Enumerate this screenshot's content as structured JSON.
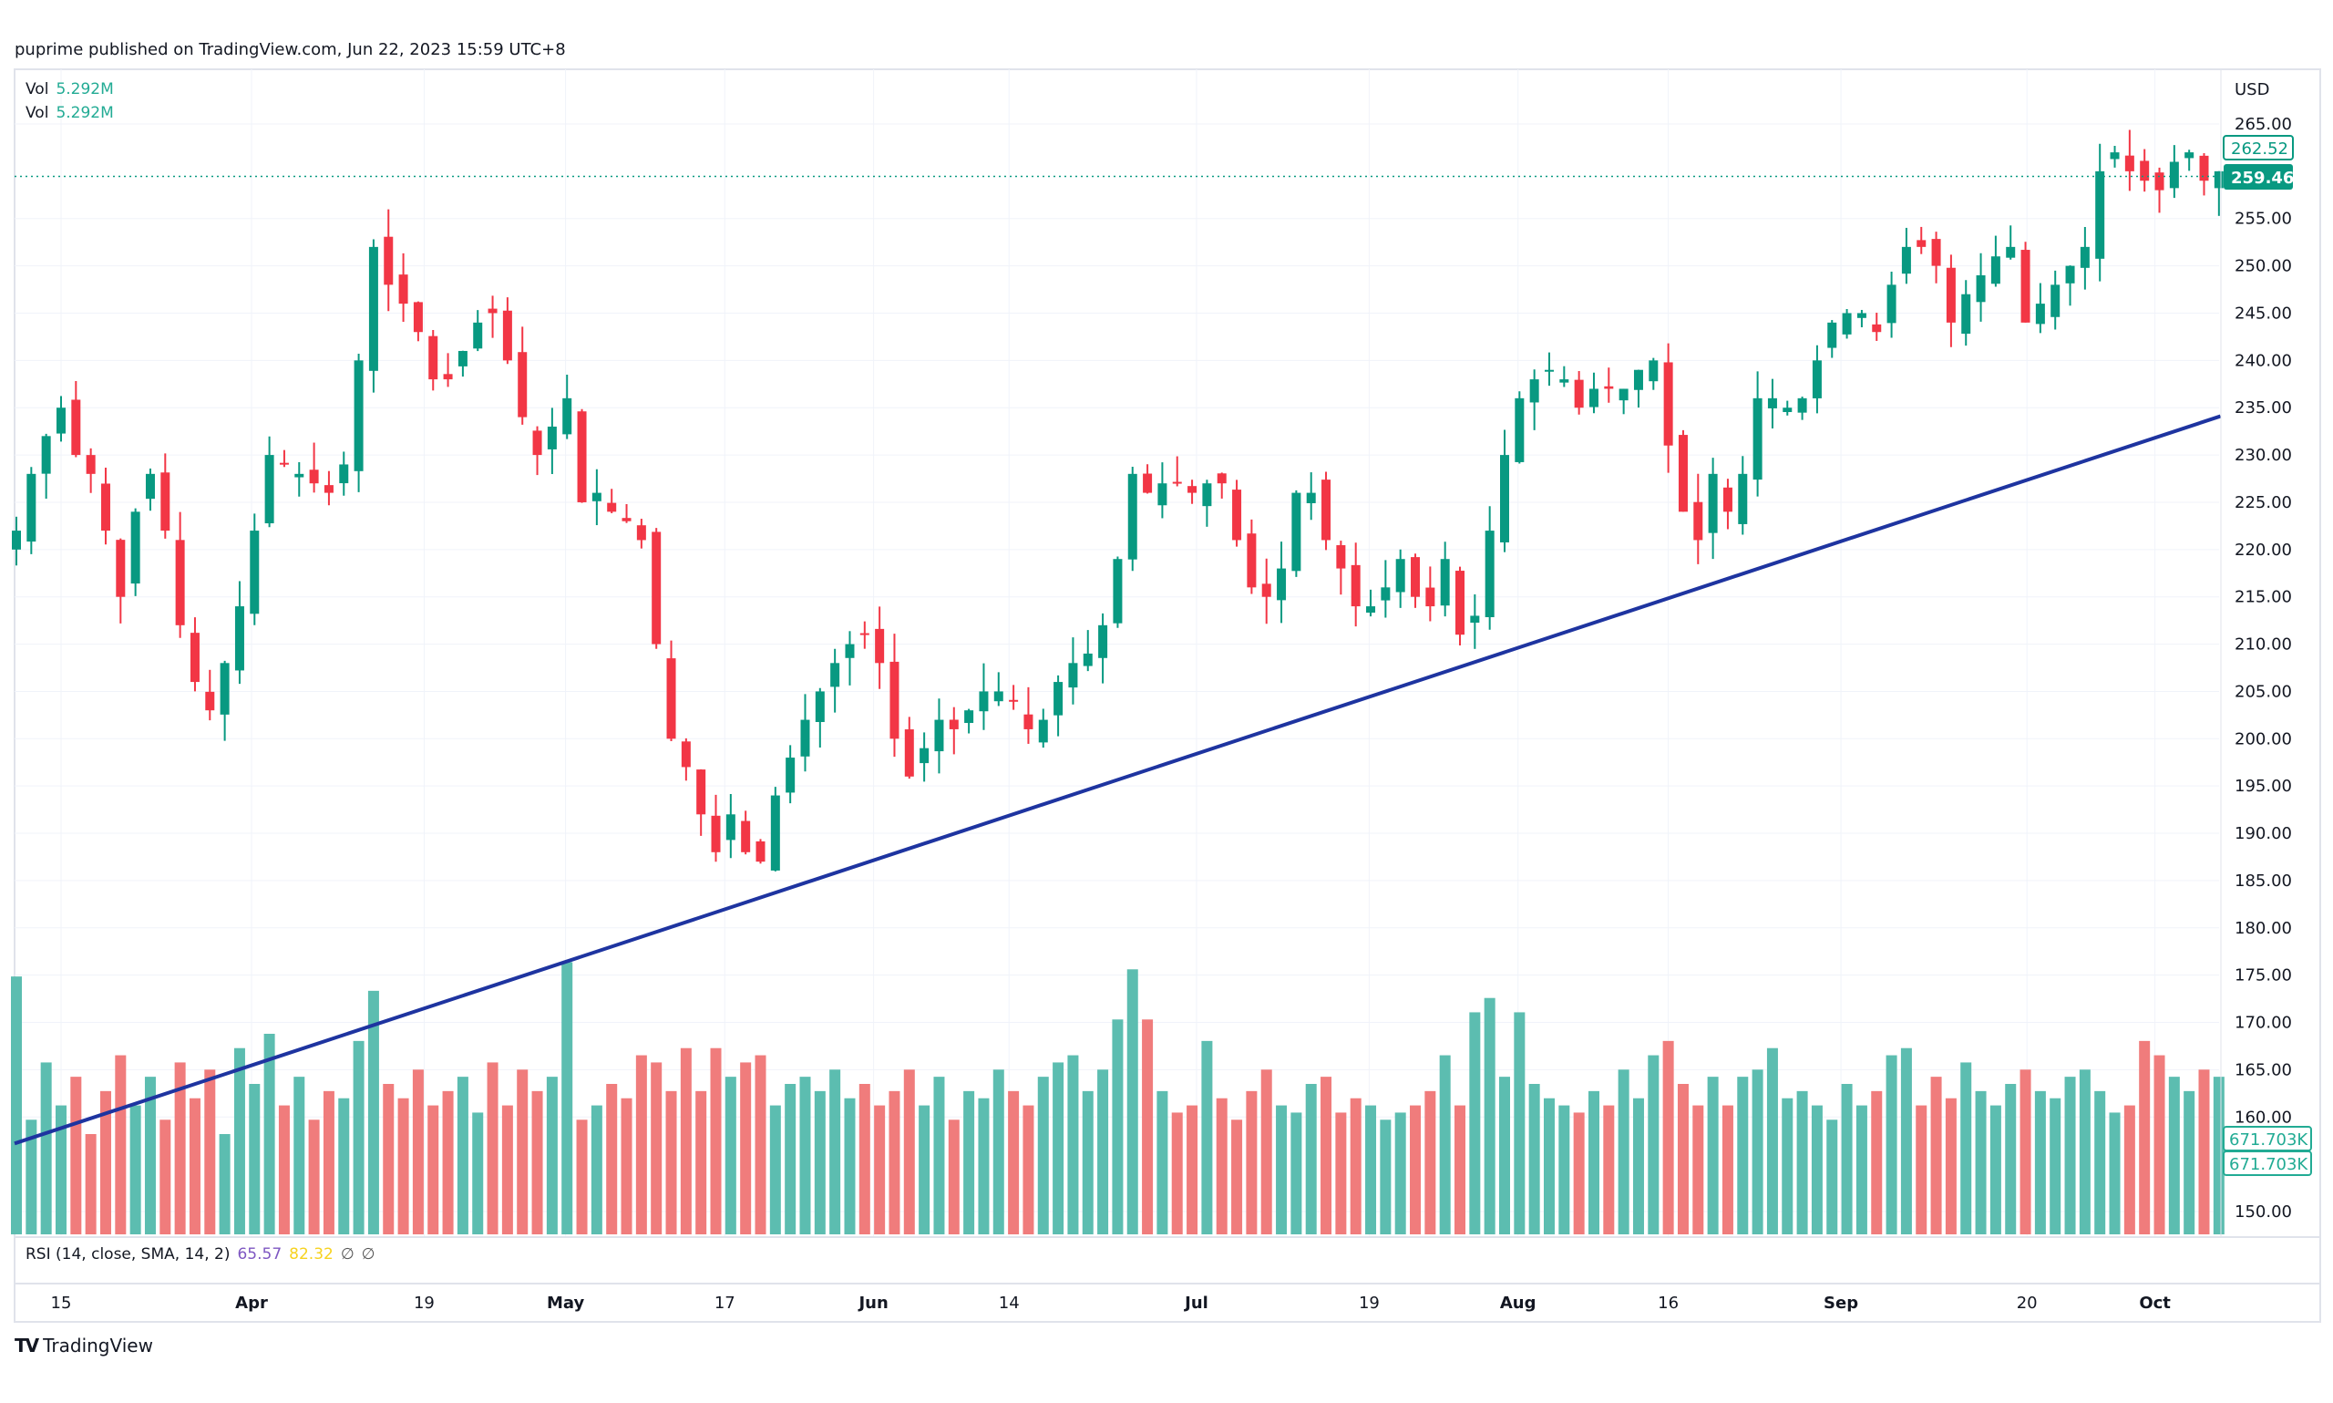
{
  "header": {
    "published": "puprime published on TradingView.com, Jun 22, 2023 15:59 UTC+8"
  },
  "legend": [
    {
      "label": "Vol",
      "value": "5.292M"
    },
    {
      "label": "Vol",
      "value": "5.292M"
    }
  ],
  "rsi": {
    "label": "RSI (14, close, SMA, 14, 2)",
    "value1": "65.57",
    "value2": "82.32",
    "value3": "∅",
    "value4": "∅"
  },
  "footer": {
    "brand": "TradingView",
    "logo": "17"
  },
  "colors": {
    "up": "#089981",
    "down": "#f23645",
    "vol_up": "#5cbdb0",
    "vol_down": "#f07c7c",
    "trendline": "#1e34a0",
    "price_label": "#089981"
  },
  "chart_data": {
    "type": "candlestick",
    "currency": "USD",
    "ylim": [
      150,
      265
    ],
    "y_ticks": [
      "265.00",
      "255.00",
      "250.00",
      "245.00",
      "240.00",
      "235.00",
      "230.00",
      "225.00",
      "220.00",
      "215.00",
      "210.00",
      "205.00",
      "200.00",
      "195.00",
      "190.00",
      "185.00",
      "180.00",
      "175.00",
      "170.00",
      "165.00",
      "160.00",
      "150.00"
    ],
    "x_ticks": [
      {
        "label": "15",
        "index": 3,
        "bold": false
      },
      {
        "label": "Apr",
        "index": 15.8,
        "bold": true
      },
      {
        "label": "19",
        "index": 27.4,
        "bold": false
      },
      {
        "label": "May",
        "index": 36.9,
        "bold": true
      },
      {
        "label": "17",
        "index": 47.6,
        "bold": false
      },
      {
        "label": "Jun",
        "index": 57.6,
        "bold": true
      },
      {
        "label": "14",
        "index": 66.7,
        "bold": false
      },
      {
        "label": "Jul",
        "index": 79.3,
        "bold": true
      },
      {
        "label": "19",
        "index": 90.9,
        "bold": false
      },
      {
        "label": "Aug",
        "index": 100.9,
        "bold": true
      },
      {
        "label": "16",
        "index": 111,
        "bold": false
      },
      {
        "label": "Sep",
        "index": 122.6,
        "bold": true
      },
      {
        "label": "20",
        "index": 135.1,
        "bold": false
      },
      {
        "label": "Oct",
        "index": 143.7,
        "bold": true
      }
    ],
    "close": [
      222,
      228,
      232,
      235,
      230,
      228,
      222,
      215,
      224,
      228,
      222,
      212,
      206,
      203,
      208,
      214,
      222,
      230,
      229,
      228,
      227,
      226,
      229,
      240,
      252,
      248,
      246,
      243,
      238,
      238,
      241,
      244,
      245,
      240,
      234,
      230,
      233,
      236,
      225,
      226,
      224,
      223,
      221,
      210,
      200,
      197,
      192,
      188,
      192,
      188,
      187,
      194,
      198,
      202,
      205,
      208,
      210,
      211,
      208,
      200,
      196,
      199,
      202,
      201,
      203,
      205,
      205,
      204,
      201,
      202,
      206,
      208,
      209,
      212,
      219,
      228,
      226,
      227,
      227,
      226,
      227,
      227,
      221,
      216,
      215,
      218,
      226,
      226,
      221,
      218,
      214,
      214,
      216,
      219,
      215,
      214,
      219,
      211,
      213,
      222,
      230,
      236,
      238,
      239,
      238,
      235,
      237,
      237,
      237,
      239,
      240,
      231,
      224,
      221,
      228,
      224,
      228,
      236,
      236,
      235,
      236,
      240,
      244,
      245,
      245,
      243,
      248,
      252,
      252,
      250,
      244,
      247,
      249,
      251,
      252,
      244,
      246,
      248,
      250,
      252,
      260,
      262,
      260,
      259,
      258,
      261,
      262,
      259,
      260
    ],
    "volume_k": [
      1800,
      800,
      1200,
      900,
      1100,
      700,
      1000,
      1250,
      900,
      1100,
      800,
      1200,
      950,
      1150,
      700,
      1300,
      1050,
      1400,
      900,
      1100,
      800,
      1000,
      950,
      1350,
      1700,
      1050,
      950,
      1150,
      900,
      1000,
      1100,
      850,
      1200,
      900,
      1150,
      1000,
      1100,
      1900,
      800,
      900,
      1050,
      950,
      1250,
      1200,
      1000,
      1300,
      1000,
      1300,
      1100,
      1200,
      1250,
      900,
      1050,
      1100,
      1000,
      1150,
      950,
      1050,
      900,
      1000,
      1150,
      900,
      1100,
      800,
      1000,
      950,
      1150,
      1000,
      900,
      1100,
      1200,
      1250,
      1000,
      1150,
      1500,
      1850,
      1500,
      1000,
      850,
      900,
      1350,
      950,
      800,
      1000,
      1150,
      900,
      850,
      1050,
      1100,
      850,
      950,
      900,
      800,
      850,
      900,
      1000,
      1250,
      900,
      1550,
      1650,
      1100,
      1550,
      1050,
      950,
      900,
      850,
      1000,
      900,
      1150,
      950,
      1250,
      1350,
      1050,
      900,
      1100,
      900,
      1100,
      1150,
      1300,
      950,
      1000,
      900,
      800,
      1050,
      900,
      1000,
      1250,
      1300,
      900,
      1100,
      950,
      1200,
      1000,
      900,
      1050,
      1150,
      1000,
      950,
      1100,
      1150,
      1000,
      850,
      900,
      1350,
      1250,
      1100,
      1000,
      1150,
      1100,
      1300,
      850,
      700,
      672
    ],
    "last_volume": "671.703K",
    "last_price": "259.46",
    "prev_label": "262.52",
    "trendline": {
      "start": {
        "index": 0,
        "price": 157.2
      },
      "end": {
        "index": 148.1,
        "price": 234.1
      }
    }
  }
}
